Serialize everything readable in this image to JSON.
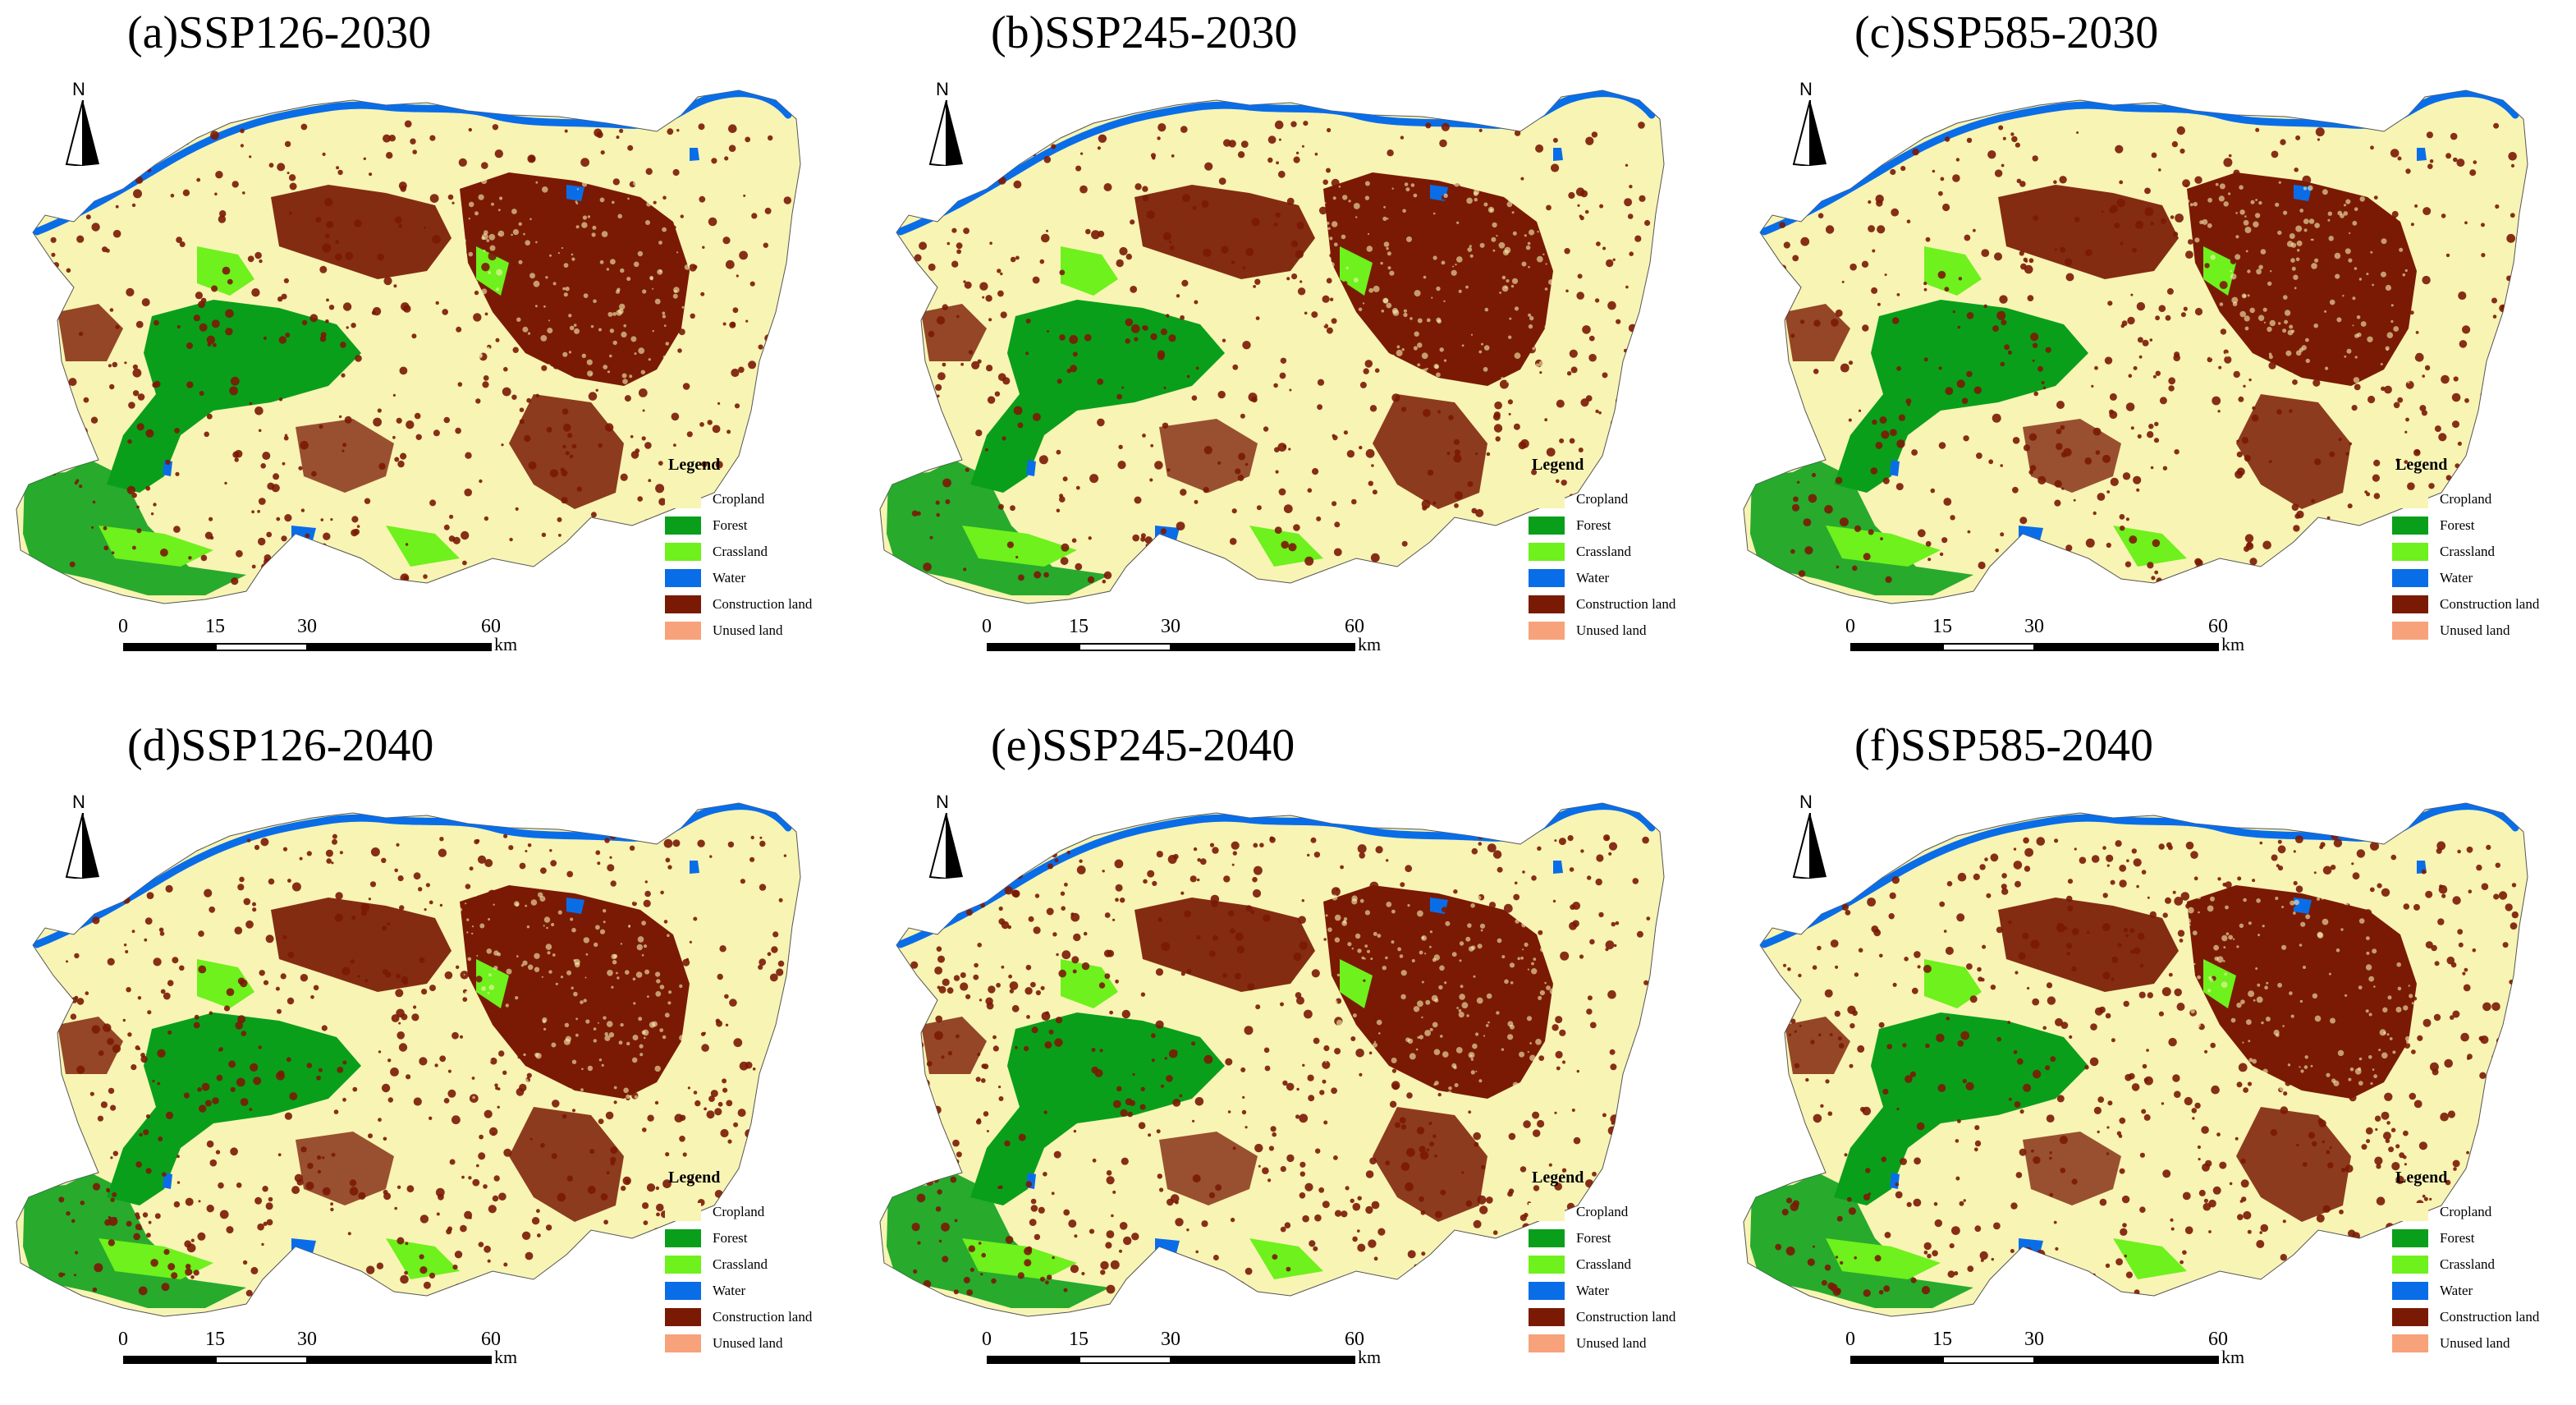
{
  "panels": [
    {
      "title": "(a)SSP126-2030",
      "scenario": "SSP126",
      "year": "2030"
    },
    {
      "title": "(b)SSP245-2030",
      "scenario": "SSP245",
      "year": "2030"
    },
    {
      "title": "(c)SSP585-2030",
      "scenario": "SSP585",
      "year": "2030"
    },
    {
      "title": "(d)SSP126-2040",
      "scenario": "SSP126",
      "year": "2040"
    },
    {
      "title": "(e)SSP245-2040",
      "scenario": "SSP245",
      "year": "2040"
    },
    {
      "title": "(f)SSP585-2040",
      "scenario": "SSP585",
      "year": "2040"
    }
  ],
  "north_label": "N",
  "legend": {
    "title": "Legend",
    "items": [
      {
        "label": "Cropland",
        "color": "#f8f4b4"
      },
      {
        "label": "Forest",
        "color": "#0a9f1a"
      },
      {
        "label": "Crassland",
        "color": "#6ef11c"
      },
      {
        "label": "Water",
        "color": "#0a6de8"
      },
      {
        "label": "Construction land",
        "color": "#7a1a04"
      },
      {
        "label": "Unused land",
        "color": "#f7a27a"
      }
    ]
  },
  "scale_bar": {
    "ticks": [
      "0",
      "15",
      "30",
      "60"
    ],
    "unit": "km"
  }
}
